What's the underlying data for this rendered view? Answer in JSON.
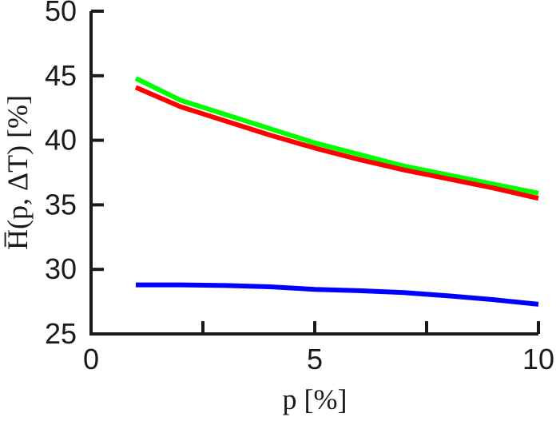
{
  "chart_data": {
    "type": "line",
    "xlabel": "p [%]",
    "ylabel": "H̅(p, ΔT) [%]",
    "xlim": [
      0,
      10
    ],
    "ylim": [
      25,
      50
    ],
    "xticks": [
      "0",
      "5",
      "10"
    ],
    "yticks": [
      "25",
      "30",
      "35",
      "40",
      "45",
      "50"
    ],
    "grid": false,
    "legend": "none",
    "series": [
      {
        "color": "#00ff00",
        "x": [
          1,
          2,
          3,
          4,
          5,
          6,
          7,
          8,
          9,
          10
        ],
        "y": [
          44.8,
          43.1,
          42.0,
          40.9,
          39.8,
          38.9,
          38.0,
          37.3,
          36.6,
          35.9
        ]
      },
      {
        "color": "#ff0000",
        "x": [
          1,
          2,
          3,
          4,
          5,
          6,
          7,
          8,
          9,
          10
        ],
        "y": [
          44.1,
          42.6,
          41.5,
          40.4,
          39.4,
          38.5,
          37.7,
          37.0,
          36.3,
          35.5
        ]
      },
      {
        "color": "#0000ff",
        "x": [
          1,
          2,
          3,
          4,
          5,
          6,
          7,
          8,
          9,
          10
        ],
        "y": [
          28.8,
          28.8,
          28.75,
          28.65,
          28.45,
          28.35,
          28.2,
          27.95,
          27.65,
          27.3
        ]
      }
    ]
  }
}
